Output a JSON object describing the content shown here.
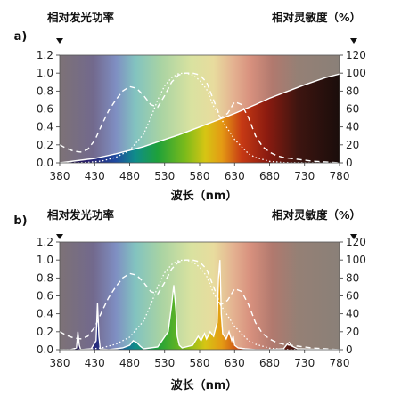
{
  "chart_data": [
    {
      "panel_label": "a)",
      "type": "line",
      "xlabel": "波长（nm）",
      "ylabel_left": "相对发光功率",
      "ylabel_right": "相对灵敏度（%）",
      "x_ticks": [
        "380",
        "430",
        "480",
        "530",
        "580",
        "630",
        "680",
        "730",
        "780"
      ],
      "y_left_ticks": [
        "0.0",
        "0.2",
        "0.4",
        "0.6",
        "0.8",
        "1.0",
        "1.2"
      ],
      "y_right_ticks": [
        "0",
        "20",
        "40",
        "60",
        "80",
        "100",
        "120"
      ],
      "xlim": [
        380,
        780
      ],
      "ylim_left": [
        0,
        1.2
      ],
      "ylim_right": [
        0,
        120
      ],
      "series": [
        {
          "style": "solid-white",
          "x": [
            380,
            400,
            430,
            460,
            480,
            500,
            530,
            550,
            580,
            600,
            630,
            660,
            680,
            700,
            730,
            760,
            780
          ],
          "y": [
            0.0,
            0.02,
            0.05,
            0.1,
            0.14,
            0.18,
            0.26,
            0.31,
            0.4,
            0.46,
            0.55,
            0.65,
            0.72,
            0.78,
            0.87,
            0.95,
            0.99
          ]
        },
        {
          "style": "dashed-white",
          "x": [
            380,
            390,
            400,
            410,
            420,
            430,
            440,
            450,
            460,
            470,
            480,
            490,
            500,
            510,
            520,
            530,
            540,
            550,
            560,
            570,
            580,
            590,
            600,
            610,
            620,
            630,
            640,
            650,
            660,
            670,
            680,
            690,
            700,
            720,
            740,
            760,
            780
          ],
          "y": [
            0.2,
            0.16,
            0.13,
            0.12,
            0.15,
            0.25,
            0.42,
            0.58,
            0.7,
            0.8,
            0.85,
            0.83,
            0.75,
            0.65,
            0.62,
            0.75,
            0.9,
            0.98,
            1.0,
            1.0,
            0.98,
            0.9,
            0.7,
            0.5,
            0.55,
            0.68,
            0.65,
            0.5,
            0.3,
            0.18,
            0.12,
            0.08,
            0.06,
            0.04,
            0.02,
            0.01,
            0.0
          ]
        },
        {
          "style": "dotted-white",
          "x": [
            380,
            400,
            420,
            440,
            460,
            480,
            500,
            510,
            520,
            530,
            540,
            550,
            560,
            570,
            580,
            590,
            600,
            610,
            620,
            630,
            640,
            650,
            660,
            680,
            700,
            730,
            760,
            780
          ],
          "y": [
            0.0,
            0.0,
            0.005,
            0.02,
            0.06,
            0.14,
            0.32,
            0.5,
            0.7,
            0.86,
            0.95,
            0.995,
            1.0,
            0.98,
            0.92,
            0.82,
            0.63,
            0.5,
            0.38,
            0.26,
            0.18,
            0.1,
            0.06,
            0.017,
            0.004,
            0.0,
            0.0,
            0.0
          ]
        }
      ]
    },
    {
      "panel_label": "b)",
      "type": "line",
      "xlabel": "波长（nm）",
      "ylabel_left": "相对发光功率",
      "ylabel_right": "相对灵敏度（%）",
      "x_ticks": [
        "380",
        "430",
        "480",
        "530",
        "580",
        "630",
        "680",
        "730",
        "780"
      ],
      "y_left_ticks": [
        "0.0",
        "0.2",
        "0.4",
        "0.6",
        "0.8",
        "1.0",
        "1.2"
      ],
      "y_right_ticks": [
        "0",
        "20",
        "40",
        "60",
        "80",
        "100",
        "120"
      ],
      "xlim": [
        380,
        780
      ],
      "ylim_left": [
        0,
        1.2
      ],
      "ylim_right": [
        0,
        120
      ],
      "series": [
        {
          "style": "solid-white-spikes",
          "x": [
            380,
            395,
            404,
            406,
            408,
            410,
            425,
            432,
            434,
            436,
            438,
            450,
            470,
            480,
            485,
            490,
            495,
            500,
            520,
            535,
            540,
            543,
            546,
            548,
            551,
            555,
            570,
            578,
            582,
            587,
            590,
            595,
            600,
            605,
            607,
            609,
            611,
            613,
            618,
            622,
            626,
            628,
            630,
            635,
            645,
            660,
            680,
            700,
            705,
            708,
            712,
            720,
            760,
            780
          ],
          "y": [
            0.0,
            0.0,
            0.02,
            0.2,
            0.05,
            0.0,
            0.01,
            0.1,
            0.52,
            0.15,
            0.01,
            0.0,
            0.02,
            0.05,
            0.1,
            0.08,
            0.04,
            0.01,
            0.03,
            0.2,
            0.5,
            0.72,
            0.45,
            0.15,
            0.05,
            0.02,
            0.05,
            0.15,
            0.1,
            0.18,
            0.12,
            0.2,
            0.15,
            0.3,
            0.8,
            1.0,
            0.4,
            0.18,
            0.12,
            0.2,
            0.1,
            0.15,
            0.05,
            0.02,
            0.01,
            0.0,
            0.0,
            0.01,
            0.06,
            0.08,
            0.04,
            0.01,
            0.0,
            0.0
          ]
        },
        {
          "style": "dashed-white",
          "x": [
            380,
            390,
            400,
            410,
            420,
            430,
            440,
            450,
            460,
            470,
            480,
            490,
            500,
            510,
            520,
            530,
            540,
            550,
            560,
            570,
            580,
            590,
            600,
            610,
            620,
            630,
            640,
            650,
            660,
            670,
            680,
            690,
            700,
            720,
            740,
            760,
            780
          ],
          "y": [
            0.2,
            0.16,
            0.13,
            0.12,
            0.15,
            0.25,
            0.42,
            0.58,
            0.7,
            0.8,
            0.85,
            0.83,
            0.75,
            0.65,
            0.62,
            0.75,
            0.9,
            0.98,
            1.0,
            1.0,
            0.98,
            0.9,
            0.7,
            0.5,
            0.55,
            0.68,
            0.65,
            0.5,
            0.3,
            0.18,
            0.12,
            0.08,
            0.06,
            0.04,
            0.02,
            0.01,
            0.0
          ]
        },
        {
          "style": "dotted-white",
          "x": [
            380,
            400,
            420,
            440,
            460,
            480,
            500,
            510,
            520,
            530,
            540,
            550,
            560,
            570,
            580,
            590,
            600,
            610,
            620,
            630,
            640,
            650,
            660,
            680,
            700,
            730,
            760,
            780
          ],
          "y": [
            0.0,
            0.0,
            0.005,
            0.02,
            0.06,
            0.14,
            0.32,
            0.5,
            0.7,
            0.86,
            0.95,
            0.995,
            1.0,
            0.98,
            0.92,
            0.82,
            0.63,
            0.5,
            0.38,
            0.26,
            0.18,
            0.1,
            0.06,
            0.017,
            0.004,
            0.0,
            0.0,
            0.0
          ]
        }
      ]
    }
  ]
}
